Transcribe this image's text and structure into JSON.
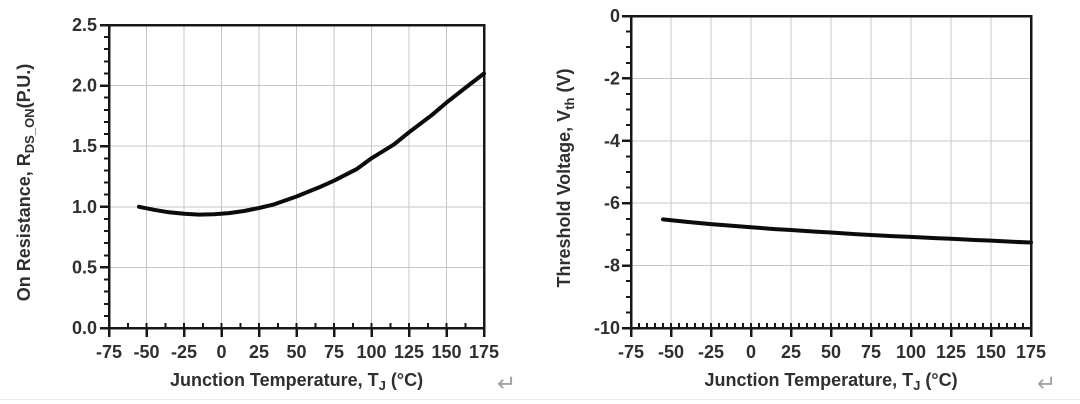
{
  "page": {
    "background": "#ffffff",
    "return_mark": "↵",
    "bottom_rule_color": "#ececec",
    "return_mark_color": "#a3a3a3"
  },
  "chart_data": [
    {
      "id": "on-resistance-chart",
      "type": "line",
      "title": "",
      "xlabel": "Junction Temperature, TJ (°C)",
      "ylabel": "On Resistance, RDS_ON(P.U.)",
      "xlabel_segments": [
        {
          "t": "Junction Temperature, T"
        },
        {
          "t": "J",
          "sub": true
        },
        {
          "t": " (°C)"
        }
      ],
      "ylabel_segments": [
        {
          "t": "On Resistance, R"
        },
        {
          "t": "DS_ON",
          "sub": true
        },
        {
          "t": "(P.U.)"
        }
      ],
      "xlim": [
        -75,
        175
      ],
      "ylim": [
        0,
        2.5
      ],
      "xticks": [
        -75,
        -50,
        -25,
        0,
        25,
        50,
        75,
        100,
        125,
        150,
        175
      ],
      "xtick_labels": [
        "-75",
        "-50",
        "-25",
        "0",
        "25",
        "50",
        "75",
        "100",
        "125",
        "150",
        "175"
      ],
      "yticks": [
        0,
        0.5,
        1.0,
        1.5,
        2.0,
        2.5
      ],
      "ytick_labels": [
        "0.0",
        "0.5",
        "1.0",
        "1.5",
        "2.0",
        "2.5"
      ],
      "x_minor_step": 12.5,
      "y_minor_step": 0.1,
      "grid": true,
      "legend": "none",
      "colors": {
        "line": "#0b0b0b",
        "grid": "#c7c7c7",
        "axis": "#171717",
        "text": "#2f2f2f"
      },
      "series": [
        {
          "name": "RDS_ON (P.U.) vs TJ",
          "x": [
            -55,
            -45,
            -35,
            -25,
            -15,
            -5,
            5,
            15,
            25,
            35,
            50,
            65,
            75,
            90,
            100,
            115,
            125,
            140,
            150,
            165,
            175
          ],
          "y": [
            1.0,
            0.975,
            0.955,
            0.942,
            0.936,
            0.938,
            0.948,
            0.965,
            0.99,
            1.02,
            1.085,
            1.16,
            1.215,
            1.31,
            1.4,
            1.515,
            1.615,
            1.755,
            1.86,
            2.005,
            2.1
          ]
        }
      ]
    },
    {
      "id": "threshold-voltage-chart",
      "type": "line",
      "title": "",
      "xlabel": "Junction Temperature, TJ (°C)",
      "ylabel": "Threshold Voltage, Vth (V)",
      "xlabel_segments": [
        {
          "t": "Junction Temperature, T"
        },
        {
          "t": "J",
          "sub": true
        },
        {
          "t": " (°C)"
        }
      ],
      "ylabel_segments": [
        {
          "t": "Threshold Voltage, V"
        },
        {
          "t": "th",
          "sub": true
        },
        {
          "t": " (V)"
        }
      ],
      "xlim": [
        -75,
        175
      ],
      "ylim": [
        -10,
        0
      ],
      "xticks": [
        -75,
        -50,
        -25,
        0,
        25,
        50,
        75,
        100,
        125,
        150,
        175
      ],
      "xtick_labels": [
        "-75",
        "-50",
        "-25",
        "0",
        "25",
        "50",
        "75",
        "100",
        "125",
        "150",
        "175"
      ],
      "yticks": [
        0,
        -2,
        -4,
        -6,
        -8,
        -10
      ],
      "ytick_labels": [
        "0",
        "-2",
        "-4",
        "-6",
        "-8",
        "-10"
      ],
      "x_minor_step": 5,
      "y_minor_step": 0.5,
      "grid": true,
      "legend": "none",
      "colors": {
        "line": "#0b0b0b",
        "grid": "#c7c7c7",
        "axis": "#171717",
        "text": "#2f2f2f"
      },
      "series": [
        {
          "name": "Vth (V) vs TJ",
          "x": [
            -55,
            -40,
            -25,
            -10,
            0,
            15,
            25,
            40,
            50,
            65,
            75,
            90,
            100,
            115,
            125,
            140,
            150,
            165,
            175
          ],
          "y": [
            -6.52,
            -6.6,
            -6.67,
            -6.73,
            -6.77,
            -6.83,
            -6.86,
            -6.91,
            -6.94,
            -6.99,
            -7.02,
            -7.06,
            -7.08,
            -7.12,
            -7.14,
            -7.18,
            -7.2,
            -7.24,
            -7.26
          ]
        }
      ]
    }
  ]
}
